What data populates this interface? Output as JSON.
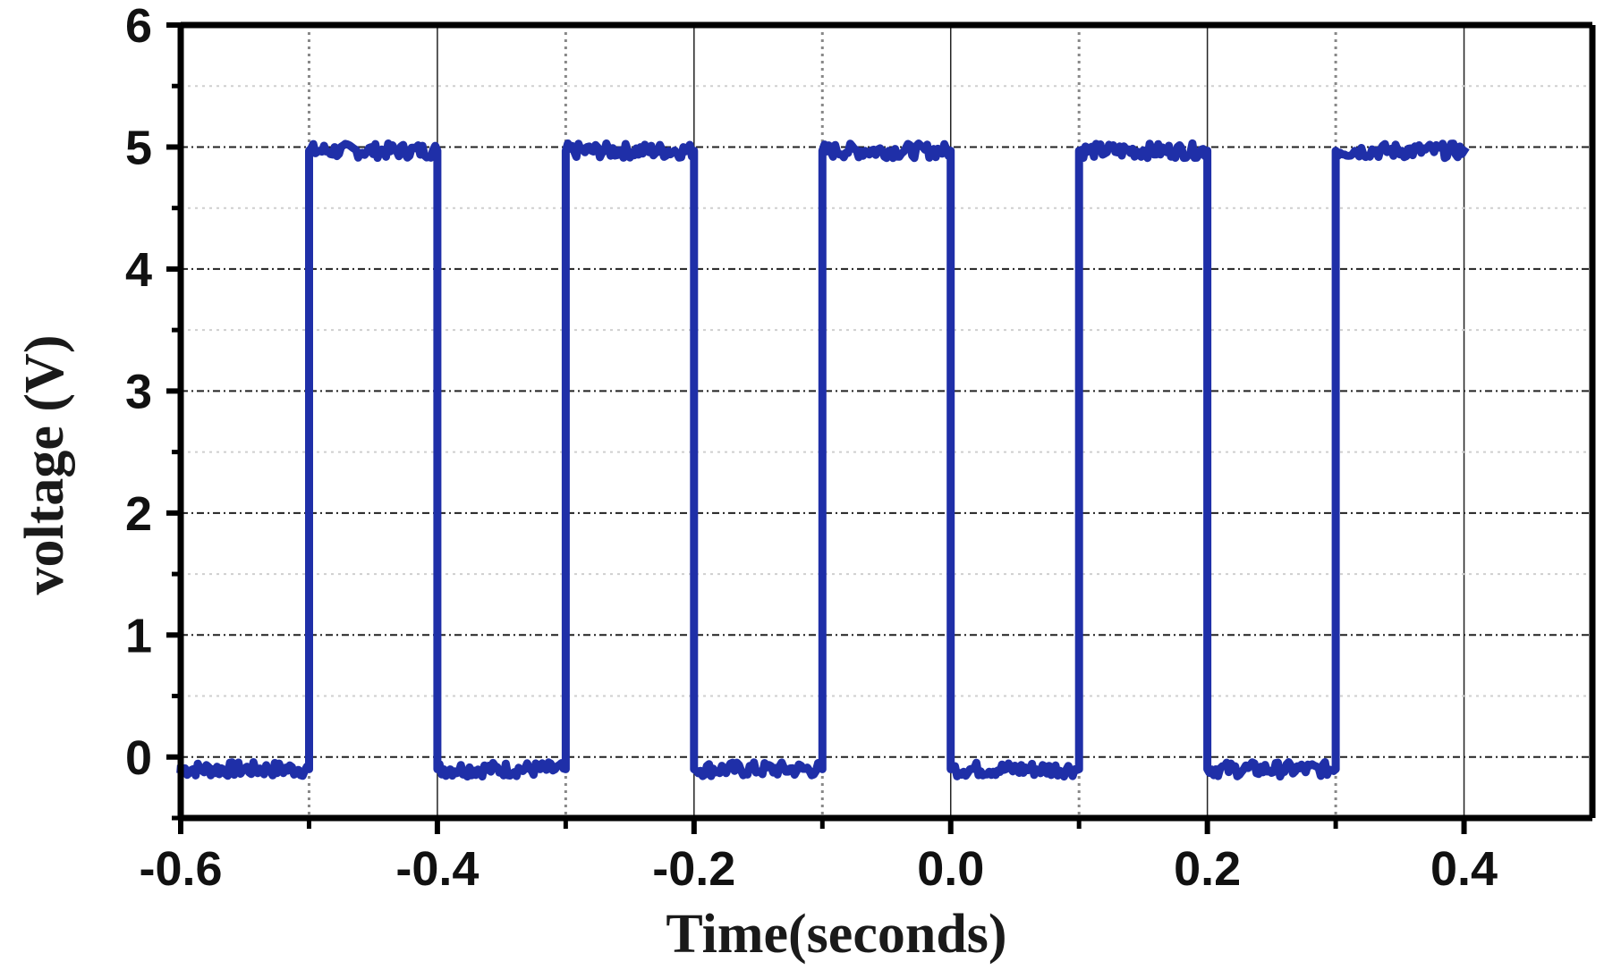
{
  "chart_data": {
    "type": "line",
    "title": "",
    "xlabel": "Time(seconds)",
    "ylabel": "voltage (V)",
    "xlim": [
      -0.6,
      0.5
    ],
    "ylim": [
      -0.5,
      6
    ],
    "x_ticks": [
      {
        "value": -0.6,
        "label": "-0.6"
      },
      {
        "value": -0.4,
        "label": "-0.4"
      },
      {
        "value": -0.2,
        "label": "-0.2"
      },
      {
        "value": 0.0,
        "label": "0.0"
      },
      {
        "value": 0.2,
        "label": "0.2"
      },
      {
        "value": 0.4,
        "label": "0.4"
      }
    ],
    "y_ticks": [
      {
        "value": 0,
        "label": "0"
      },
      {
        "value": 1,
        "label": "1"
      },
      {
        "value": 2,
        "label": "2"
      },
      {
        "value": 3,
        "label": "3"
      },
      {
        "value": 4,
        "label": "4"
      },
      {
        "value": 5,
        "label": "5"
      },
      {
        "value": 6,
        "label": "6"
      }
    ],
    "grid": true,
    "legend": "none",
    "line_color": "#1f2fa8",
    "series": [
      {
        "x": [
          -0.6,
          -0.5,
          -0.5,
          -0.4,
          -0.4,
          -0.3,
          -0.3,
          -0.2,
          -0.2,
          -0.1,
          -0.1,
          0.0,
          0.0,
          0.1,
          0.1,
          0.2,
          0.2,
          0.3,
          0.3,
          0.4
        ],
        "values": [
          -0.1,
          -0.1,
          4.97,
          4.97,
          -0.1,
          -0.1,
          4.97,
          4.97,
          -0.1,
          -0.1,
          4.97,
          4.97,
          -0.1,
          -0.1,
          4.97,
          4.97,
          -0.1,
          -0.1,
          4.97,
          4.97
        ]
      }
    ]
  }
}
